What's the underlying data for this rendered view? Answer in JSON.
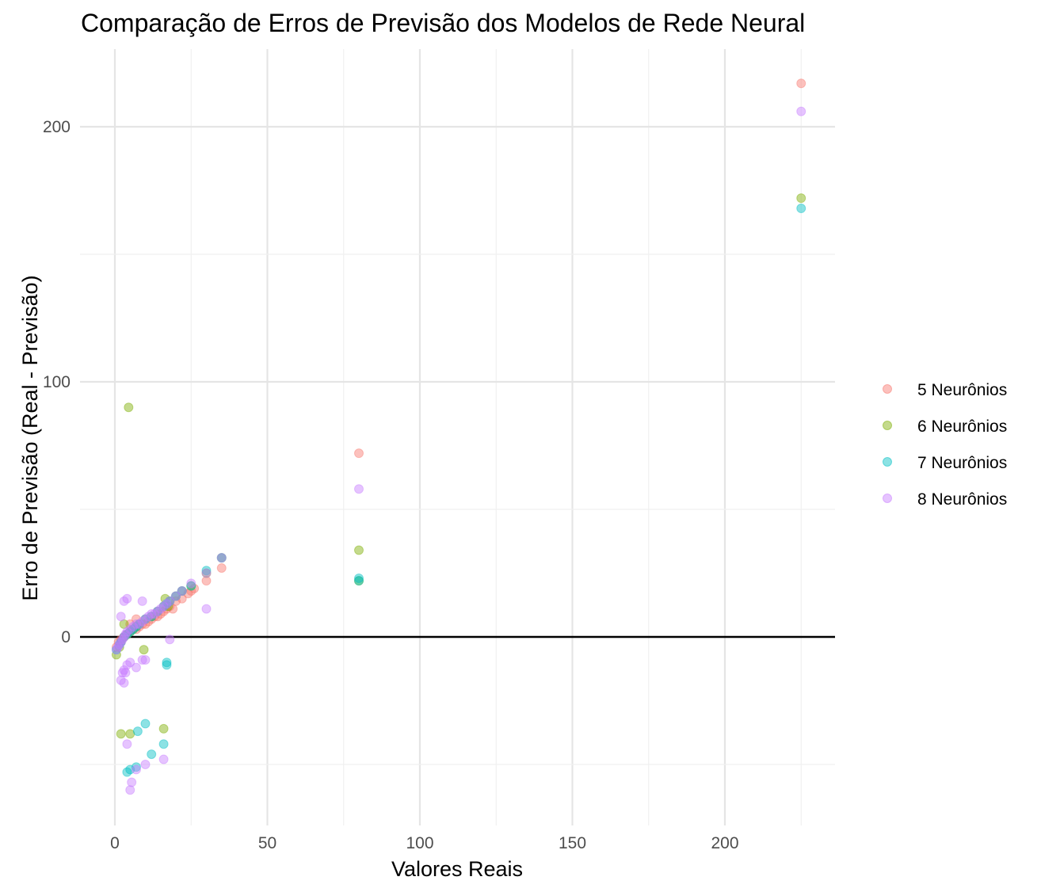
{
  "chart_data": {
    "type": "scatter",
    "title": "Comparação de Erros de Previsão dos Modelos de Rede Neural",
    "xlabel": "Valores Reais",
    "ylabel": "Erro de Previsão (Real - Previsão)",
    "xlim": [
      -10,
      235
    ],
    "ylim": [
      -74,
      232
    ],
    "x_ticks": [
      0,
      50,
      100,
      150,
      200
    ],
    "y_ticks": [
      0,
      100,
      200
    ],
    "x_tick_labels": [
      "0",
      "50",
      "100",
      "150",
      "200"
    ],
    "y_tick_labels": [
      "0",
      "100",
      "200"
    ],
    "grid": true,
    "reference_line_y": 0,
    "legend_position": "right",
    "point_opacity": 0.45,
    "series": [
      {
        "name": "5 Neurônios",
        "color": "#F8766D",
        "x": [
          0.5,
          1.2,
          2,
          3,
          4,
          5,
          6,
          7,
          8,
          9,
          10,
          11,
          12,
          13,
          14,
          15,
          16,
          17,
          18,
          20,
          22,
          24,
          25,
          26,
          30,
          35,
          80,
          225,
          5,
          7,
          19
        ],
        "y": [
          -4,
          -2,
          -1,
          0,
          1,
          2,
          3,
          3,
          4,
          5,
          5,
          6,
          7,
          8,
          8,
          9,
          10,
          11,
          12,
          14,
          15,
          17,
          18,
          19,
          22,
          27,
          72,
          217,
          5,
          7,
          11
        ]
      },
      {
        "name": "6 Neurônios",
        "color": "#7CAE00",
        "x": [
          0.5,
          1.5,
          2,
          3,
          4,
          4.5,
          5,
          6,
          7,
          8,
          10,
          12,
          14,
          16,
          18,
          20,
          22,
          25,
          30,
          35,
          80,
          80,
          225,
          2,
          5,
          16,
          9.5,
          16.5,
          3,
          17.5
        ],
        "y": [
          -7,
          -4,
          -2,
          0,
          1,
          90,
          2,
          3,
          4,
          5,
          7,
          8,
          10,
          12,
          14,
          16,
          18,
          20,
          25,
          31,
          34,
          22,
          172,
          -38,
          -38,
          -36,
          -5,
          15,
          5,
          12
        ],
        "_note": null
      },
      {
        "name": "7 Neurônios",
        "color": "#00BFC4",
        "x": [
          0.5,
          1.5,
          2,
          3,
          4,
          5,
          6,
          7,
          8,
          10,
          12,
          14,
          16,
          17,
          18,
          20,
          22,
          25,
          30,
          35,
          80,
          80,
          225,
          10,
          7.5,
          16,
          12,
          4,
          7,
          5,
          17,
          17
        ],
        "y": [
          -5,
          -3,
          -2,
          0,
          1,
          2,
          3,
          4,
          5,
          7,
          8,
          10,
          12,
          13,
          14,
          16,
          18,
          20,
          26,
          31,
          22,
          23,
          168,
          -34,
          -37,
          -42,
          -46,
          -53,
          -51,
          -52,
          -10,
          -11
        ],
        "_note": null
      },
      {
        "name": "8 Neurônios",
        "color": "#C77CFF",
        "x": [
          0.5,
          1,
          1.5,
          2,
          2.5,
          3,
          3.5,
          4,
          5,
          6,
          7,
          8,
          9,
          10,
          11,
          12,
          13,
          14,
          15,
          16,
          17,
          18,
          20,
          22,
          25,
          30,
          30,
          35,
          80,
          225,
          2,
          3,
          4,
          3,
          4,
          5,
          7,
          9,
          10,
          9,
          18,
          16,
          10,
          7,
          4,
          5.5,
          5,
          3.5,
          3,
          2.5,
          2
        ],
        "y": [
          -5,
          -4,
          -3,
          -2,
          -1,
          0,
          1,
          2,
          3,
          4,
          5,
          5,
          6,
          7,
          8,
          9,
          9,
          10,
          11,
          12,
          13,
          14,
          16,
          18,
          21,
          25,
          11,
          31,
          58,
          206,
          8,
          14,
          15,
          -18,
          -42,
          -60,
          -52,
          14,
          -9,
          -9,
          -1,
          -48,
          -50,
          -12,
          -11,
          -57,
          -10,
          -14,
          -13,
          -14,
          -17
        ]
      }
    ]
  }
}
